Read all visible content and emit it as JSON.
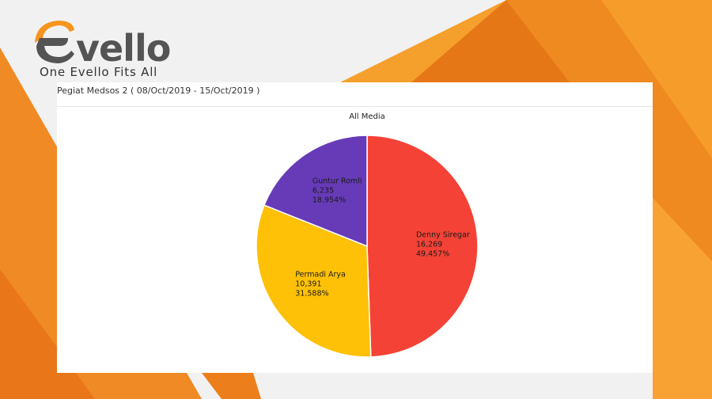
{
  "brand": {
    "logo_text": "vello",
    "tagline": "One Evello Fits All",
    "accent_color": "#f7941d"
  },
  "report": {
    "title": "Pegiat Medsos 2 ( 08/Oct/2019 - 15/Oct/2019 )"
  },
  "chart_data": {
    "type": "pie",
    "title": "All Media",
    "slices": [
      {
        "name": "Denny Siregar",
        "value": 16269,
        "value_label": "16,269",
        "percent_label": "49.457%",
        "color": "#f44336"
      },
      {
        "name": "Permadi Arya",
        "value": 10391,
        "value_label": "10,391",
        "percent_label": "31.588%",
        "color": "#ffc107"
      },
      {
        "name": "Guntur Romli",
        "value": 6235,
        "value_label": "6,235",
        "percent_label": "18.954%",
        "color": "#673ab7"
      }
    ]
  }
}
